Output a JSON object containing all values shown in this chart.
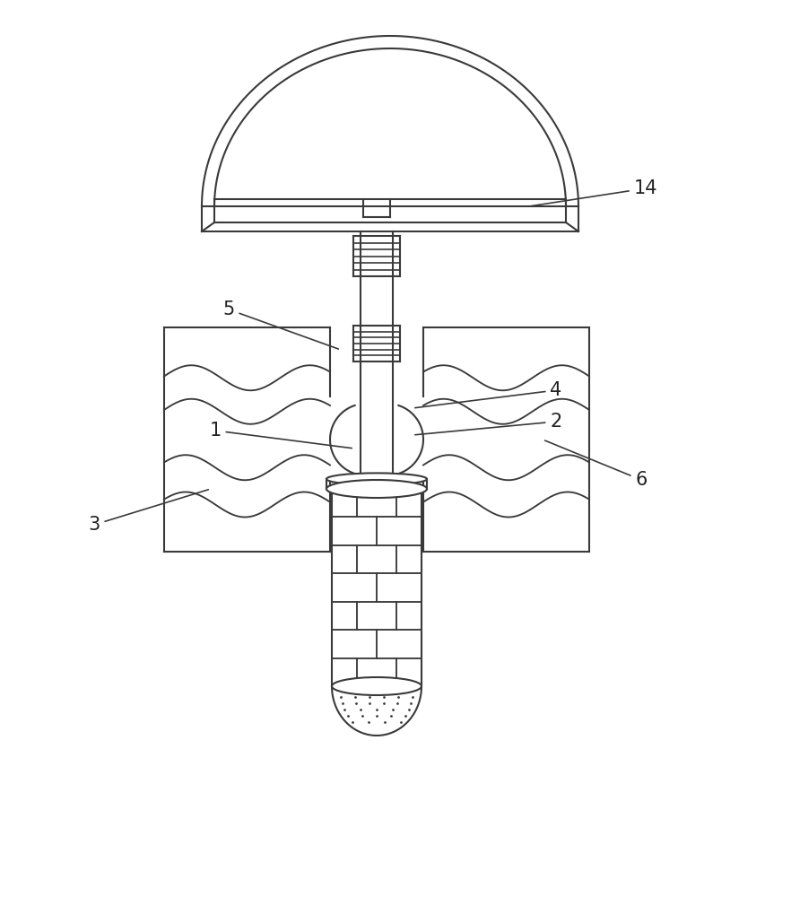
{
  "bg_color": "#ffffff",
  "line_color": "#3a3a3a",
  "lw": 1.5,
  "fig_w": 8.82,
  "fig_h": 10.0,
  "label_fontsize": 15
}
